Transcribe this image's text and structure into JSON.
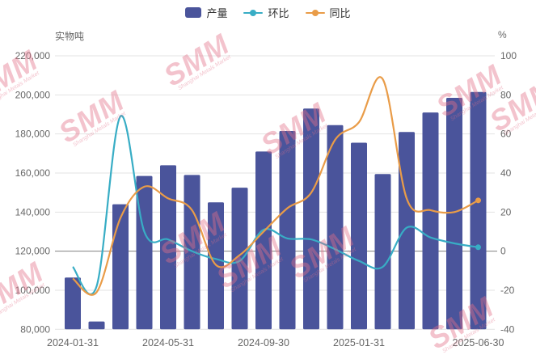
{
  "legend": {
    "items": [
      {
        "label": "产量",
        "type": "bar",
        "color": "#4A549B"
      },
      {
        "label": "环比",
        "type": "line",
        "color": "#38ADC5"
      },
      {
        "label": "同比",
        "type": "line",
        "color": "#E99C48"
      }
    ]
  },
  "axes": {
    "left_title": "实物吨",
    "right_title": "%",
    "left_ticks": [
      {
        "value": 220000,
        "label": "220,000"
      },
      {
        "value": 200000,
        "label": "200,000"
      },
      {
        "value": 180000,
        "label": "180,000"
      },
      {
        "value": 160000,
        "label": "160,000"
      },
      {
        "value": 140000,
        "label": "140,000"
      },
      {
        "value": 120000,
        "label": "120,000"
      },
      {
        "value": 100000,
        "label": "100,000"
      },
      {
        "value": 80000,
        "label": "80,000"
      }
    ],
    "right_ticks": [
      {
        "value": 100,
        "label": "100"
      },
      {
        "value": 80,
        "label": "80"
      },
      {
        "value": 60,
        "label": "60"
      },
      {
        "value": 40,
        "label": "40"
      },
      {
        "value": 20,
        "label": "20"
      },
      {
        "value": 0,
        "label": "0"
      },
      {
        "value": -20,
        "label": "-20"
      },
      {
        "value": -40,
        "label": "-40"
      }
    ],
    "zero_line_value": 120000,
    "x_ticks": [
      {
        "index": 0,
        "label": "2024-01-31"
      },
      {
        "index": 4,
        "label": "2024-05-31"
      },
      {
        "index": 8,
        "label": "2024-09-30"
      },
      {
        "index": 12,
        "label": "2025-01-31"
      },
      {
        "index": 17,
        "label": "2025-06-30"
      }
    ]
  },
  "chart_data": {
    "type": "bar+line",
    "categories": [
      "2024-01-31",
      "2024-02-29",
      "2024-03-31",
      "2024-04-30",
      "2024-05-31",
      "2024-06-30",
      "2024-07-31",
      "2024-08-31",
      "2024-09-30",
      "2024-10-31",
      "2024-11-30",
      "2024-12-31",
      "2025-01-31",
      "2025-02-28",
      "2025-03-31",
      "2025-04-30",
      "2025-05-31",
      "2025-06-30"
    ],
    "left_ylabel": "实物吨",
    "right_ylabel": "%",
    "left_ylim": [
      80000,
      220000
    ],
    "right_ylim": [
      -40,
      100
    ],
    "grid": true,
    "legend_position": "top-center",
    "series": [
      {
        "name": "产量",
        "type": "bar",
        "axis": "left",
        "unit": "实物吨",
        "color": "#4A549B",
        "values": [
          106500,
          84000,
          144000,
          158500,
          164000,
          159000,
          145000,
          152500,
          171000,
          181500,
          193000,
          184500,
          175500,
          159500,
          181000,
          191000,
          198500,
          201500
        ]
      },
      {
        "name": "环比",
        "type": "line",
        "axis": "right",
        "unit": "%",
        "color": "#38ADC5",
        "values": [
          -8,
          -18,
          69,
          10,
          6,
          0,
          -4,
          -5,
          11,
          6.5,
          6,
          1,
          -5,
          -8,
          12,
          7,
          4,
          2
        ]
      },
      {
        "name": "同比",
        "type": "line",
        "axis": "right",
        "unit": "%",
        "color": "#E99C48",
        "values": [
          -14,
          -21,
          17,
          33,
          27,
          21,
          -7,
          -2,
          10,
          22,
          30,
          57,
          66,
          88,
          27,
          21,
          20,
          26
        ]
      }
    ]
  },
  "watermark": {
    "text": "SMM",
    "subtext": "Shanghai Metals Market"
  }
}
